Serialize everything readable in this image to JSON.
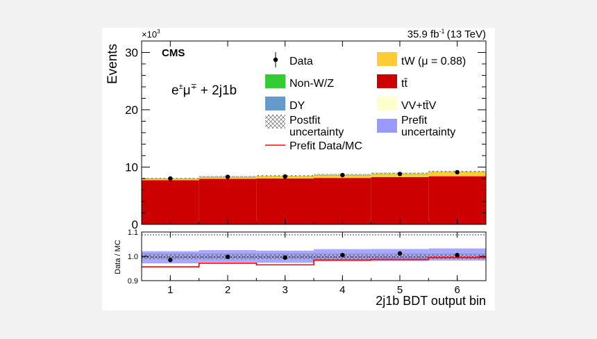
{
  "chart_data": {
    "type": "bar",
    "subtype": "stacked histogram with ratio panel",
    "experiment": "CMS",
    "luminosity_label": "35.9 fb",
    "luminosity_superscript": "-1",
    "energy_label": "(13 TeV)",
    "channel_label": "e",
    "channel_mu": "μ",
    "channel_pm": "±",
    "channel_mp": "∓",
    "channel_suffix": "+ 2j1b",
    "xlabel": "2j1b BDT output bin",
    "ylabel": "Events",
    "ylabel_multiplier": "×10",
    "ylabel_multiplier_exp": "3",
    "ratio_ylabel": "Data / MC",
    "xlim": [
      0.5,
      6.5
    ],
    "ylim": [
      0,
      32
    ],
    "ratio_ylim": [
      0.9,
      1.1
    ],
    "x_ticks": [
      "1",
      "2",
      "3",
      "4",
      "5",
      "6"
    ],
    "y_ticks": [
      "0",
      "10",
      "20",
      "30"
    ],
    "ratio_ticks": [
      "0.9",
      "1.0",
      "1.1"
    ],
    "categories": [
      1,
      2,
      3,
      4,
      5,
      6
    ],
    "series": [
      {
        "name": "tt̄",
        "color": "#cc0000",
        "values": [
          7.7,
          7.95,
          8.0,
          8.1,
          8.25,
          8.4
        ]
      },
      {
        "name": "tW (μ = 0.88)",
        "color": "#ffcc33",
        "values": [
          0.25,
          0.3,
          0.4,
          0.5,
          0.6,
          0.75
        ]
      },
      {
        "name": "Non-W/Z",
        "color": "#33cc33",
        "values": [
          0.02,
          0.02,
          0.02,
          0.02,
          0.02,
          0.02
        ]
      },
      {
        "name": "DY",
        "color": "#6699cc",
        "values": [
          0.02,
          0.02,
          0.02,
          0.02,
          0.02,
          0.02
        ]
      },
      {
        "name": "VV+tt̄V",
        "color": "#ffffcc",
        "values": [
          0.05,
          0.05,
          0.05,
          0.05,
          0.05,
          0.05
        ]
      }
    ],
    "data": {
      "name": "Data",
      "values": [
        8.0,
        8.3,
        8.35,
        8.6,
        8.8,
        9.1
      ]
    },
    "ratio_data": [
      0.985,
      0.998,
      0.995,
      1.005,
      1.012,
      1.005
    ],
    "prefit_ratio": [
      0.957,
      0.972,
      0.965,
      0.985,
      0.987,
      0.995
    ],
    "prefit_unc_halfwidth": [
      0.025,
      0.025,
      0.025,
      0.025,
      0.025,
      0.025
    ],
    "postfit_unc_halfwidth": [
      0.012,
      0.012,
      0.012,
      0.012,
      0.012,
      0.012
    ],
    "legend": [
      {
        "label": "Data",
        "type": "marker"
      },
      {
        "label": "tW (μ = 0.88)",
        "color": "#ffcc33"
      },
      {
        "label": "Non-W/Z",
        "color": "#33cc33"
      },
      {
        "label": "tt̄",
        "color": "#cc0000"
      },
      {
        "label": "DY",
        "color": "#6699cc"
      },
      {
        "label": "VV+tt̄V",
        "color": "#ffffcc"
      },
      {
        "label": "Postfit uncertainty",
        "line1": "Postfit",
        "line2": "uncertainty",
        "type": "hatch"
      },
      {
        "label": "Prefit uncertainty",
        "line1": "Prefit",
        "line2": "uncertainty",
        "color": "#9999ff"
      },
      {
        "label": "Prefit Data/MC",
        "type": "line",
        "color": "#ff0000"
      }
    ],
    "legend_placement": "top-right"
  }
}
